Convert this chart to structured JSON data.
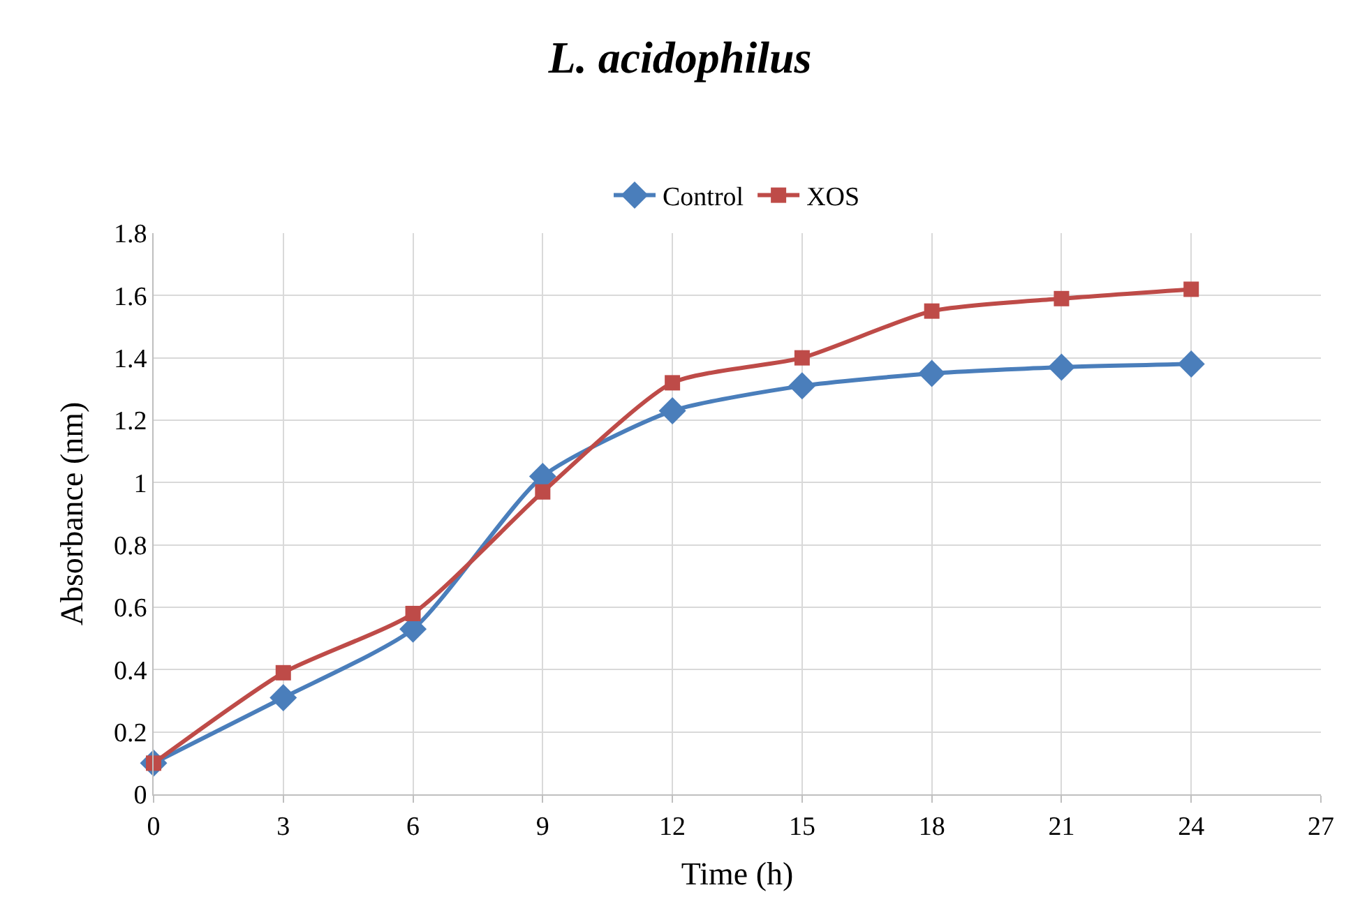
{
  "chart_data": {
    "type": "line",
    "title": "L. acidophilus",
    "xlabel": "Time (h)",
    "ylabel": "Absorbance (nm)",
    "x": [
      0,
      3,
      6,
      9,
      12,
      15,
      18,
      21,
      24
    ],
    "xlim": [
      0,
      27
    ],
    "xticks": [
      0,
      3,
      6,
      9,
      12,
      15,
      18,
      21,
      24,
      27
    ],
    "ylim": [
      0,
      1.8
    ],
    "yticks": [
      0,
      0.2,
      0.4,
      0.6,
      0.8,
      1,
      1.2,
      1.4,
      1.6,
      1.8
    ],
    "grid": true,
    "legend": "top",
    "line_style": "solid",
    "series": [
      {
        "name": "Control",
        "color": "#4a7ebb",
        "marker": "diamond",
        "values": [
          0.1,
          0.31,
          0.53,
          1.02,
          1.23,
          1.31,
          1.35,
          1.37,
          1.38
        ]
      },
      {
        "name": "XOS",
        "color": "#be4b48",
        "marker": "square",
        "values": [
          0.1,
          0.39,
          0.58,
          0.97,
          1.32,
          1.4,
          1.55,
          1.59,
          1.62
        ]
      }
    ]
  }
}
